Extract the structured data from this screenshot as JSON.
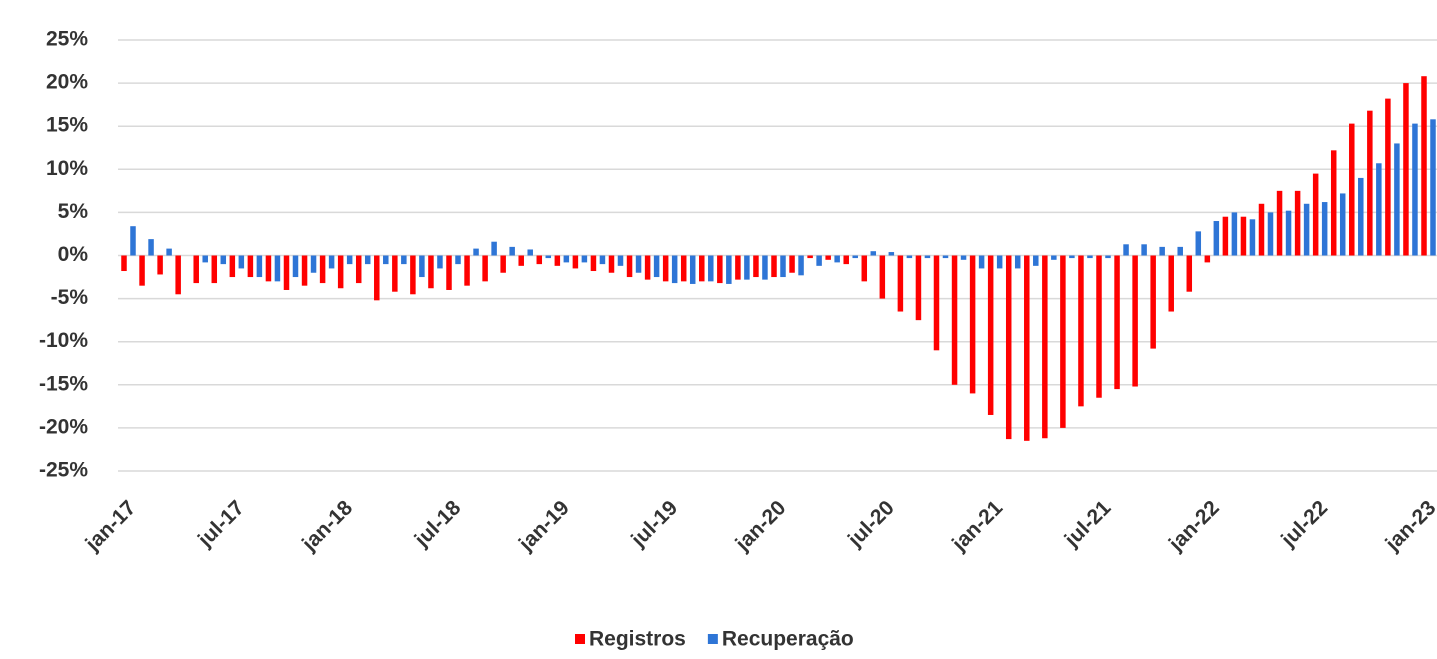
{
  "chart_data": {
    "type": "bar",
    "categories": [
      "jan-17",
      null,
      null,
      null,
      null,
      null,
      "jul-17",
      null,
      null,
      null,
      null,
      null,
      "jan-18",
      null,
      null,
      null,
      null,
      null,
      "jul-18",
      null,
      null,
      null,
      null,
      null,
      "jan-19",
      null,
      null,
      null,
      null,
      null,
      "jul-19",
      null,
      null,
      null,
      null,
      null,
      "jan-20",
      null,
      null,
      null,
      null,
      null,
      "jul-20",
      null,
      null,
      null,
      null,
      null,
      "jan-21",
      null,
      null,
      null,
      null,
      null,
      "jul-21",
      null,
      null,
      null,
      null,
      null,
      "jan-22",
      null,
      null,
      null,
      null,
      null,
      "jul-22",
      null,
      null,
      null,
      null,
      null,
      "jan-23"
    ],
    "series": [
      {
        "name": "Registros",
        "color": "#ff0000",
        "values": [
          -1.8,
          -3.5,
          -2.2,
          -4.5,
          -3.2,
          -3.2,
          -2.5,
          -2.5,
          -3,
          -4,
          -3.5,
          -3.2,
          -3.8,
          -3.2,
          -5.2,
          -4.2,
          -4.5,
          -3.8,
          -4,
          -3.5,
          -3,
          -2,
          -1.2,
          -1,
          -1.2,
          -1.5,
          -1.8,
          -2,
          -2.5,
          -2.8,
          -3,
          -3,
          -3,
          -3.2,
          -2.8,
          -2.5,
          -2.5,
          -2,
          -0.3,
          -0.5,
          -1,
          -3,
          -5,
          -6.5,
          -7.5,
          -11,
          -15,
          -16,
          -18.5,
          -21.3,
          -21.5,
          -21.2,
          -20,
          -17.5,
          -16.5,
          -15.5,
          -15.2,
          -10.8,
          -6.5,
          -4.2,
          -0.8,
          4.5,
          4.5,
          6,
          7.5,
          7.5,
          9.5,
          12.2,
          15.3,
          16.8,
          18.2,
          20,
          20.8
        ]
      },
      {
        "name": "Recuperação",
        "color": "#2e75d6",
        "values": [
          3.4,
          1.9,
          0.8,
          0,
          -0.8,
          -1,
          -1.5,
          -2.5,
          -3,
          -2.5,
          -2,
          -1.5,
          -1,
          -1,
          -1,
          -1,
          -2.5,
          -1.5,
          -1,
          0.8,
          1.6,
          1,
          0.7,
          -0.3,
          -0.8,
          -0.8,
          -1,
          -1.2,
          -2,
          -2.5,
          -3.2,
          -3.3,
          -3,
          -3.3,
          -2.8,
          -2.8,
          -2.5,
          -2.3,
          -1.2,
          -0.8,
          -0.3,
          0.5,
          0.4,
          -0.3,
          -0.3,
          -0.3,
          -0.5,
          -1.5,
          -1.5,
          -1.5,
          -1.2,
          -0.5,
          -0.3,
          -0.3,
          -0.3,
          1.3,
          1.3,
          1,
          1,
          2.8,
          4,
          5,
          4.2,
          5,
          5.2,
          6,
          6.2,
          7.2,
          9,
          10.7,
          13,
          15.3,
          15.8
        ]
      }
    ],
    "ylim": [
      -25,
      25
    ],
    "yticks": [
      {
        "value": -25,
        "label": "-25%"
      },
      {
        "value": -20,
        "label": "-20%"
      },
      {
        "value": -15,
        "label": "-15%"
      },
      {
        "value": -10,
        "label": "-10%"
      },
      {
        "value": -5,
        "label": "-5%"
      },
      {
        "value": 0,
        "label": "0%"
      },
      {
        "value": 5,
        "label": "5%"
      },
      {
        "value": 10,
        "label": "10%"
      },
      {
        "value": 15,
        "label": "15%"
      },
      {
        "value": 20,
        "label": "20%"
      },
      {
        "value": 25,
        "label": "25%"
      }
    ],
    "grid": true,
    "legend": "bottom"
  }
}
